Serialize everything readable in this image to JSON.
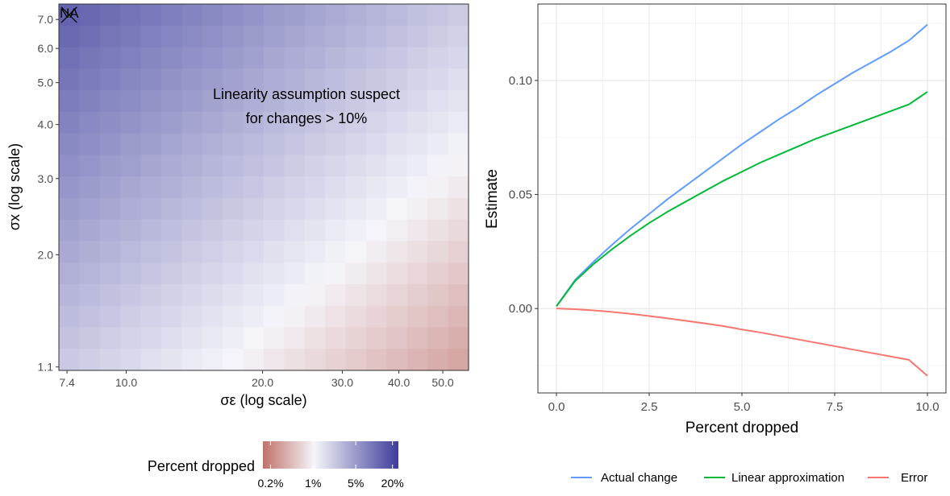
{
  "chart_data": [
    {
      "type": "heatmap",
      "xlabel": "σε (log scale)",
      "ylabel": "σx (log scale)",
      "x_scale": "log",
      "y_scale": "log",
      "xlim": [
        7.1,
        57
      ],
      "ylim": [
        1.08,
        7.6
      ],
      "x_ticks": [
        7.4,
        10.0,
        20.0,
        30.0,
        40.0,
        50.0
      ],
      "x_tick_labels": [
        "7.4",
        "10.0",
        "20.0",
        "30.0",
        "40.0",
        "50.0"
      ],
      "y_ticks": [
        1.1,
        2.0,
        3.0,
        4.0,
        5.0,
        6.0,
        7.0
      ],
      "y_tick_labels": [
        "1.1",
        "2.0",
        "3.0",
        "4.0",
        "5.0",
        "6.0",
        "7.0"
      ],
      "grid_size": [
        20,
        17
      ],
      "value_description": "Percent dropped (log color scale, 0.2% to 20%)",
      "value_rule": "log10(pct) = 0.3 + 0.9*log10(sx/1.1) - 0.85*log10(se/7.4); cells with pct > 22 are NA; cells with pct > 10 are crossed",
      "na_label": "NA",
      "na_color": "#bebebe",
      "annotation": [
        "Linearity assumption suspect",
        "for changes > 10%"
      ],
      "legend": {
        "title": "Percent dropped",
        "tick_labels": [
          "0.2%",
          "1%",
          "5%",
          "20%"
        ],
        "tick_values": [
          0.2,
          1,
          5,
          20
        ],
        "colors": {
          "low": "#c0726a",
          "mid": "#f5f5fa",
          "high": "#3d3d9c"
        }
      }
    },
    {
      "type": "line",
      "xlabel": "Percent dropped",
      "ylabel": "Estimate",
      "xlim": [
        -0.5,
        10.5
      ],
      "ylim": [
        -0.037,
        0.1335
      ],
      "x_ticks": [
        0.0,
        2.5,
        5.0,
        7.5,
        10.0
      ],
      "x_tick_labels": [
        "0.0",
        "2.5",
        "5.0",
        "7.5",
        "10.0"
      ],
      "y_ticks": [
        0.0,
        0.05,
        0.1
      ],
      "y_tick_labels": [
        "0.00",
        "0.05",
        "0.10"
      ],
      "grid": true,
      "legend_position": "bottom",
      "x": [
        0,
        0.5,
        1,
        1.5,
        2,
        2.5,
        3,
        3.5,
        4,
        4.5,
        5,
        5.5,
        6,
        6.5,
        7,
        7.5,
        8,
        8.5,
        9,
        9.5,
        10
      ],
      "series": [
        {
          "name": "Actual change",
          "color": "#619cff",
          "values": [
            0.001,
            0.0125,
            0.0205,
            0.028,
            0.035,
            0.0415,
            0.048,
            0.054,
            0.06,
            0.066,
            0.072,
            0.0775,
            0.083,
            0.088,
            0.0935,
            0.0985,
            0.1035,
            0.108,
            0.1125,
            0.1175,
            0.1245
          ]
        },
        {
          "name": "Linear approximation",
          "color": "#00ba38",
          "values": [
            0.001,
            0.012,
            0.0195,
            0.026,
            0.032,
            0.0375,
            0.0425,
            0.047,
            0.0515,
            0.056,
            0.06,
            0.064,
            0.0675,
            0.071,
            0.0745,
            0.0775,
            0.0805,
            0.0835,
            0.0865,
            0.0895,
            0.095
          ]
        },
        {
          "name": "Error",
          "color": "#f8766d",
          "values": [
            0.0,
            -0.0003,
            -0.0008,
            -0.0015,
            -0.0023,
            -0.0033,
            -0.0043,
            -0.0054,
            -0.0065,
            -0.0077,
            -0.0092,
            -0.0105,
            -0.012,
            -0.0135,
            -0.015,
            -0.0165,
            -0.018,
            -0.0195,
            -0.021,
            -0.0225,
            -0.0295
          ]
        }
      ]
    }
  ]
}
